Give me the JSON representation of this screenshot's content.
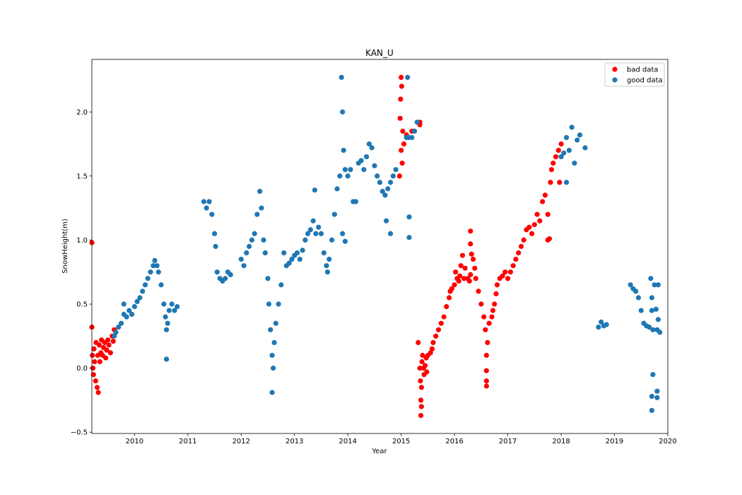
{
  "chart_data": {
    "type": "scatter",
    "title": "KAN_U",
    "xlabel": "Year",
    "ylabel": "SnowHeight(m)",
    "xlim": [
      2009.2,
      2020.0
    ],
    "ylim": [
      -0.51,
      2.41
    ],
    "x_ticks": [
      2010,
      2011,
      2012,
      2013,
      2014,
      2015,
      2016,
      2017,
      2018,
      2019,
      2020
    ],
    "y_ticks": [
      -0.5,
      0.0,
      0.5,
      1.0,
      1.5,
      2.0
    ],
    "y_tick_labels": [
      "−0.5",
      "0.0",
      "0.5",
      "1.0",
      "1.5",
      "2.0"
    ],
    "legend_position": "top-right",
    "grid": false,
    "series": [
      {
        "name": "bad data",
        "color": "#ff0000",
        "points": [
          [
            2009.2,
            0.98
          ],
          [
            2009.2,
            0.32
          ],
          [
            2009.21,
            0.1
          ],
          [
            2009.22,
            0.0
          ],
          [
            2009.23,
            -0.05
          ],
          [
            2009.24,
            0.15
          ],
          [
            2009.25,
            0.05
          ],
          [
            2009.27,
            -0.1
          ],
          [
            2009.28,
            0.2
          ],
          [
            2009.3,
            -0.15
          ],
          [
            2009.31,
            0.1
          ],
          [
            2009.32,
            -0.19
          ],
          [
            2009.34,
            0.18
          ],
          [
            2009.35,
            0.05
          ],
          [
            2009.37,
            0.12
          ],
          [
            2009.38,
            0.22
          ],
          [
            2009.4,
            0.1
          ],
          [
            2009.42,
            0.16
          ],
          [
            2009.44,
            0.2
          ],
          [
            2009.46,
            0.08
          ],
          [
            2009.48,
            0.14
          ],
          [
            2009.5,
            0.22
          ],
          [
            2009.52,
            0.18
          ],
          [
            2009.55,
            0.12
          ],
          [
            2009.58,
            0.25
          ],
          [
            2009.6,
            0.21
          ],
          [
            2009.62,
            0.3
          ],
          [
            2015.0,
            2.27
          ],
          [
            2014.99,
            2.1
          ],
          [
            2014.98,
            1.95
          ],
          [
            2015.0,
            1.7
          ],
          [
            2015.02,
            1.6
          ],
          [
            2014.97,
            1.5
          ],
          [
            2015.01,
            2.2
          ],
          [
            2015.03,
            1.85
          ],
          [
            2015.05,
            1.75
          ],
          [
            2015.1,
            1.82
          ],
          [
            2015.2,
            1.85
          ],
          [
            2015.35,
            1.92
          ],
          [
            2015.35,
            1.9
          ],
          [
            2015.35,
            -0.0
          ],
          [
            2015.36,
            -0.1
          ],
          [
            2015.37,
            -0.25
          ],
          [
            2015.37,
            -0.37
          ],
          [
            2015.38,
            -0.3
          ],
          [
            2015.38,
            -0.15
          ],
          [
            2015.39,
            0.05
          ],
          [
            2015.4,
            0.1
          ],
          [
            2015.42,
            0.0
          ],
          [
            2015.43,
            -0.05
          ],
          [
            2015.45,
            0.02
          ],
          [
            2015.47,
            0.08
          ],
          [
            2015.48,
            -0.03
          ],
          [
            2015.5,
            0.1
          ],
          [
            2015.32,
            0.2
          ],
          [
            2015.55,
            0.12
          ],
          [
            2015.58,
            0.15
          ],
          [
            2015.6,
            0.2
          ],
          [
            2015.65,
            0.25
          ],
          [
            2015.7,
            0.3
          ],
          [
            2015.75,
            0.35
          ],
          [
            2015.8,
            0.4
          ],
          [
            2015.85,
            0.48
          ],
          [
            2015.9,
            0.55
          ],
          [
            2015.92,
            0.6
          ],
          [
            2015.95,
            0.62
          ],
          [
            2016.0,
            0.65
          ],
          [
            2016.02,
            0.75
          ],
          [
            2016.05,
            0.7
          ],
          [
            2016.08,
            0.68
          ],
          [
            2016.1,
            0.72
          ],
          [
            2016.12,
            0.8
          ],
          [
            2016.15,
            0.88
          ],
          [
            2016.18,
            0.7
          ],
          [
            2016.2,
            0.78
          ],
          [
            2016.25,
            0.7
          ],
          [
            2016.28,
            0.68
          ],
          [
            2016.3,
            0.73
          ],
          [
            2016.3,
            1.07
          ],
          [
            2016.3,
            0.97
          ],
          [
            2016.32,
            0.89
          ],
          [
            2016.35,
            0.85
          ],
          [
            2016.38,
            0.78
          ],
          [
            2016.4,
            0.7
          ],
          [
            2016.45,
            0.6
          ],
          [
            2016.5,
            0.5
          ],
          [
            2016.55,
            0.4
          ],
          [
            2016.58,
            0.3
          ],
          [
            2016.6,
            0.1
          ],
          [
            2016.6,
            -0.02
          ],
          [
            2016.6,
            -0.1
          ],
          [
            2016.6,
            -0.14
          ],
          [
            2016.62,
            0.2
          ],
          [
            2016.65,
            0.35
          ],
          [
            2016.7,
            0.4
          ],
          [
            2016.72,
            0.45
          ],
          [
            2016.75,
            0.5
          ],
          [
            2016.78,
            0.58
          ],
          [
            2016.8,
            0.65
          ],
          [
            2016.85,
            0.7
          ],
          [
            2016.9,
            0.72
          ],
          [
            2016.95,
            0.75
          ],
          [
            2017.0,
            0.7
          ],
          [
            2017.05,
            0.75
          ],
          [
            2017.1,
            0.8
          ],
          [
            2017.15,
            0.85
          ],
          [
            2017.2,
            0.9
          ],
          [
            2017.25,
            0.95
          ],
          [
            2017.3,
            1.0
          ],
          [
            2017.35,
            1.08
          ],
          [
            2017.4,
            1.1
          ],
          [
            2017.45,
            1.05
          ],
          [
            2017.5,
            1.12
          ],
          [
            2017.55,
            1.2
          ],
          [
            2017.6,
            1.15
          ],
          [
            2017.65,
            1.3
          ],
          [
            2017.7,
            1.35
          ],
          [
            2017.75,
            1.2
          ],
          [
            2017.75,
            1.0
          ],
          [
            2017.78,
            1.01
          ],
          [
            2017.8,
            1.45
          ],
          [
            2017.82,
            1.55
          ],
          [
            2017.85,
            1.6
          ],
          [
            2017.9,
            1.65
          ],
          [
            2017.95,
            1.7
          ],
          [
            2018.0,
            1.75
          ],
          [
            2017.97,
            1.45
          ]
        ]
      },
      {
        "name": "good data",
        "color": "#1f77b4",
        "points": [
          [
            2009.62,
            0.25
          ],
          [
            2009.65,
            0.28
          ],
          [
            2009.7,
            0.32
          ],
          [
            2009.75,
            0.35
          ],
          [
            2009.8,
            0.42
          ],
          [
            2009.8,
            0.5
          ],
          [
            2009.85,
            0.4
          ],
          [
            2009.9,
            0.45
          ],
          [
            2009.95,
            0.42
          ],
          [
            2010.0,
            0.48
          ],
          [
            2010.05,
            0.52
          ],
          [
            2010.1,
            0.55
          ],
          [
            2010.15,
            0.6
          ],
          [
            2010.2,
            0.65
          ],
          [
            2010.25,
            0.7
          ],
          [
            2010.3,
            0.75
          ],
          [
            2010.35,
            0.8
          ],
          [
            2010.38,
            0.84
          ],
          [
            2010.42,
            0.8
          ],
          [
            2010.45,
            0.75
          ],
          [
            2010.5,
            0.65
          ],
          [
            2010.55,
            0.5
          ],
          [
            2010.58,
            0.4
          ],
          [
            2010.6,
            0.3
          ],
          [
            2010.6,
            0.07
          ],
          [
            2010.62,
            0.35
          ],
          [
            2010.65,
            0.45
          ],
          [
            2010.7,
            0.5
          ],
          [
            2010.75,
            0.45
          ],
          [
            2010.8,
            0.48
          ],
          [
            2011.3,
            1.3
          ],
          [
            2011.35,
            1.25
          ],
          [
            2011.4,
            1.3
          ],
          [
            2011.45,
            1.2
          ],
          [
            2011.5,
            1.05
          ],
          [
            2011.52,
            0.95
          ],
          [
            2011.55,
            0.75
          ],
          [
            2011.6,
            0.7
          ],
          [
            2011.65,
            0.68
          ],
          [
            2011.7,
            0.7
          ],
          [
            2011.75,
            0.75
          ],
          [
            2011.8,
            0.73
          ],
          [
            2012.0,
            0.85
          ],
          [
            2012.05,
            0.8
          ],
          [
            2012.1,
            0.9
          ],
          [
            2012.15,
            0.95
          ],
          [
            2012.2,
            1.0
          ],
          [
            2012.25,
            1.05
          ],
          [
            2012.3,
            1.2
          ],
          [
            2012.35,
            1.38
          ],
          [
            2012.38,
            1.25
          ],
          [
            2012.42,
            1.0
          ],
          [
            2012.45,
            0.9
          ],
          [
            2012.5,
            0.7
          ],
          [
            2012.52,
            0.5
          ],
          [
            2012.55,
            0.3
          ],
          [
            2012.58,
            0.1
          ],
          [
            2012.58,
            -0.19
          ],
          [
            2012.6,
            0.0
          ],
          [
            2012.62,
            0.2
          ],
          [
            2012.65,
            0.35
          ],
          [
            2012.7,
            0.5
          ],
          [
            2012.75,
            0.65
          ],
          [
            2012.8,
            0.9
          ],
          [
            2012.85,
            0.8
          ],
          [
            2012.9,
            0.82
          ],
          [
            2012.95,
            0.85
          ],
          [
            2013.0,
            0.88
          ],
          [
            2013.05,
            0.9
          ],
          [
            2013.1,
            0.85
          ],
          [
            2013.15,
            0.92
          ],
          [
            2013.2,
            1.0
          ],
          [
            2013.25,
            1.05
          ],
          [
            2013.3,
            1.08
          ],
          [
            2013.35,
            1.15
          ],
          [
            2013.38,
            1.39
          ],
          [
            2013.4,
            1.05
          ],
          [
            2013.45,
            1.1
          ],
          [
            2013.5,
            1.05
          ],
          [
            2013.55,
            0.9
          ],
          [
            2013.6,
            0.8
          ],
          [
            2013.62,
            0.75
          ],
          [
            2013.65,
            0.85
          ],
          [
            2013.7,
            1.0
          ],
          [
            2013.75,
            1.2
          ],
          [
            2013.8,
            1.4
          ],
          [
            2013.85,
            1.5
          ],
          [
            2013.88,
            2.27
          ],
          [
            2013.9,
            2.0
          ],
          [
            2013.92,
            1.7
          ],
          [
            2013.95,
            1.55
          ],
          [
            2013.95,
            0.99
          ],
          [
            2013.9,
            1.05
          ],
          [
            2014.0,
            1.5
          ],
          [
            2014.05,
            1.55
          ],
          [
            2014.1,
            1.3
          ],
          [
            2014.15,
            1.3
          ],
          [
            2014.2,
            1.6
          ],
          [
            2014.25,
            1.62
          ],
          [
            2014.3,
            1.55
          ],
          [
            2014.35,
            1.65
          ],
          [
            2014.4,
            1.75
          ],
          [
            2014.45,
            1.72
          ],
          [
            2014.5,
            1.58
          ],
          [
            2014.55,
            1.5
          ],
          [
            2014.6,
            1.45
          ],
          [
            2014.65,
            1.38
          ],
          [
            2014.7,
            1.35
          ],
          [
            2014.72,
            1.15
          ],
          [
            2014.75,
            1.4
          ],
          [
            2014.8,
            1.45
          ],
          [
            2014.8,
            1.05
          ],
          [
            2014.85,
            1.5
          ],
          [
            2014.9,
            1.55
          ],
          [
            2015.1,
            1.8
          ],
          [
            2015.12,
            2.27
          ],
          [
            2015.14,
            1.8
          ],
          [
            2015.15,
            1.18
          ],
          [
            2015.15,
            1.02
          ],
          [
            2015.2,
            1.8
          ],
          [
            2015.25,
            1.85
          ],
          [
            2015.3,
            1.92
          ],
          [
            2018.0,
            1.65
          ],
          [
            2018.05,
            1.68
          ],
          [
            2018.1,
            1.45
          ],
          [
            2018.1,
            1.8
          ],
          [
            2018.15,
            1.7
          ],
          [
            2018.2,
            1.88
          ],
          [
            2018.25,
            1.6
          ],
          [
            2018.3,
            1.78
          ],
          [
            2018.35,
            1.82
          ],
          [
            2018.45,
            1.72
          ],
          [
            2018.7,
            0.32
          ],
          [
            2018.75,
            0.36
          ],
          [
            2018.8,
            0.33
          ],
          [
            2018.85,
            0.34
          ],
          [
            2019.3,
            0.65
          ],
          [
            2019.35,
            0.62
          ],
          [
            2019.4,
            0.6
          ],
          [
            2019.45,
            0.55
          ],
          [
            2019.5,
            0.45
          ],
          [
            2019.55,
            0.35
          ],
          [
            2019.6,
            0.33
          ],
          [
            2019.65,
            0.32
          ],
          [
            2019.68,
            0.7
          ],
          [
            2019.7,
            0.55
          ],
          [
            2019.7,
            0.45
          ],
          [
            2019.72,
            0.3
          ],
          [
            2019.72,
            -0.05
          ],
          [
            2019.7,
            -0.22
          ],
          [
            2019.7,
            -0.33
          ],
          [
            2019.75,
            0.65
          ],
          [
            2019.78,
            0.46
          ],
          [
            2019.8,
            0.3
          ],
          [
            2019.8,
            -0.18
          ],
          [
            2019.8,
            -0.23
          ],
          [
            2019.82,
            0.38
          ],
          [
            2019.82,
            0.65
          ],
          [
            2019.85,
            0.28
          ]
        ]
      }
    ]
  }
}
